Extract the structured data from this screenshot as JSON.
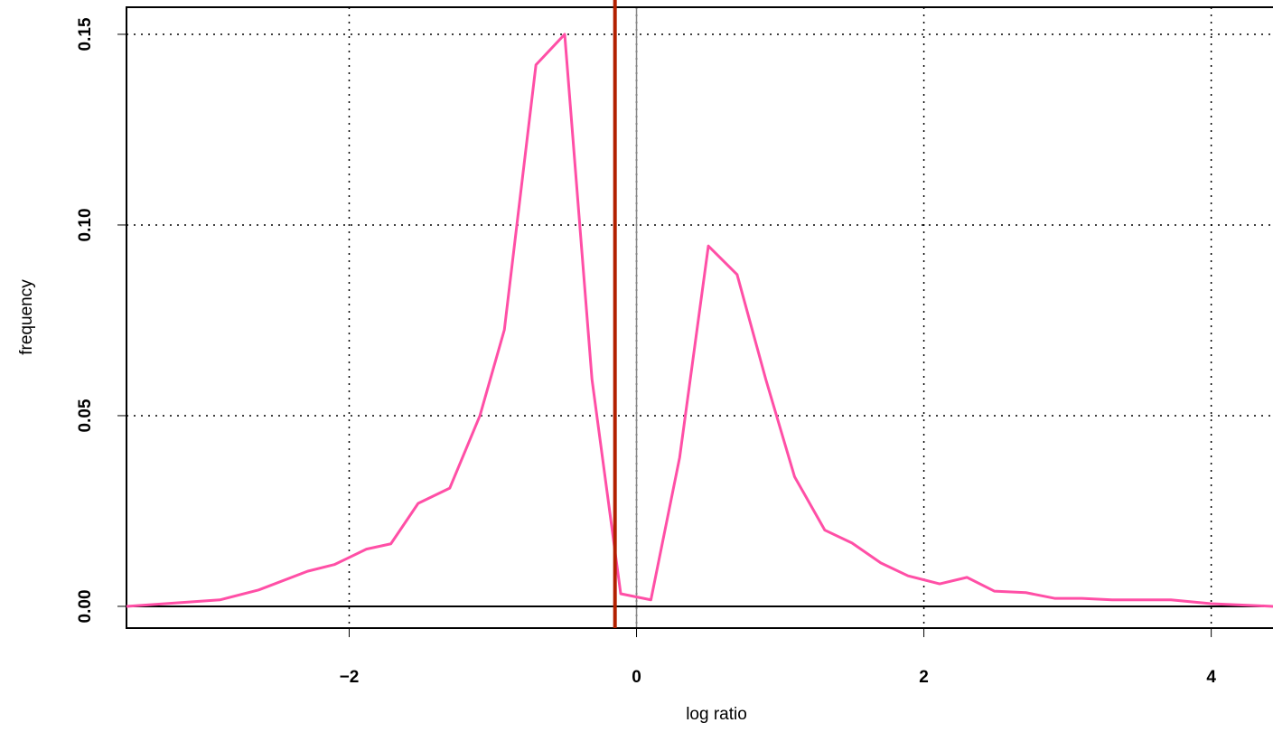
{
  "chart_data": {
    "type": "line",
    "x_label": "log ratio",
    "y_label": "frequency",
    "x": [
      -3.55,
      -2.9,
      -2.63,
      -2.29,
      -2.1,
      -1.88,
      -1.71,
      -1.52,
      -1.3,
      -1.09,
      -0.92,
      -0.7,
      -0.5,
      -0.31,
      -0.11,
      0.1,
      0.3,
      0.5,
      0.7,
      0.9,
      1.1,
      1.31,
      1.5,
      1.7,
      1.89,
      2.11,
      2.3,
      2.49,
      2.71,
      2.91,
      3.1,
      3.31,
      3.72,
      4.0,
      4.43
    ],
    "values": [
      0,
      0.0017,
      0.0043,
      0.0092,
      0.011,
      0.015,
      0.0164,
      0.027,
      0.031,
      0.05,
      0.0725,
      0.142,
      0.15,
      0.0595,
      0.0033,
      0.0017,
      0.039,
      0.0945,
      0.087,
      0.0595,
      0.034,
      0.02,
      0.0166,
      0.0114,
      0.008,
      0.0059,
      0.0076,
      0.004,
      0.0036,
      0.0021,
      0.0021,
      0.0017,
      0.0017,
      0.0007,
      0
    ],
    "color": "#ff4fa6",
    "vline": {
      "value": -0.15,
      "color": "#b22000"
    },
    "xlim": [
      -3.55,
      4.43
    ],
    "ylim": [
      -0.0057,
      0.1571
    ],
    "xticks": [
      {
        "value": -2,
        "label": "−2"
      },
      0,
      2,
      4
    ],
    "yticks": [
      {
        "value": 0,
        "label": "0.00"
      },
      {
        "value": 0.05,
        "label": "0.05"
      },
      {
        "value": 0.1,
        "label": "0.10"
      },
      {
        "value": 0.15,
        "label": "0.15"
      }
    ],
    "grid": true
  }
}
